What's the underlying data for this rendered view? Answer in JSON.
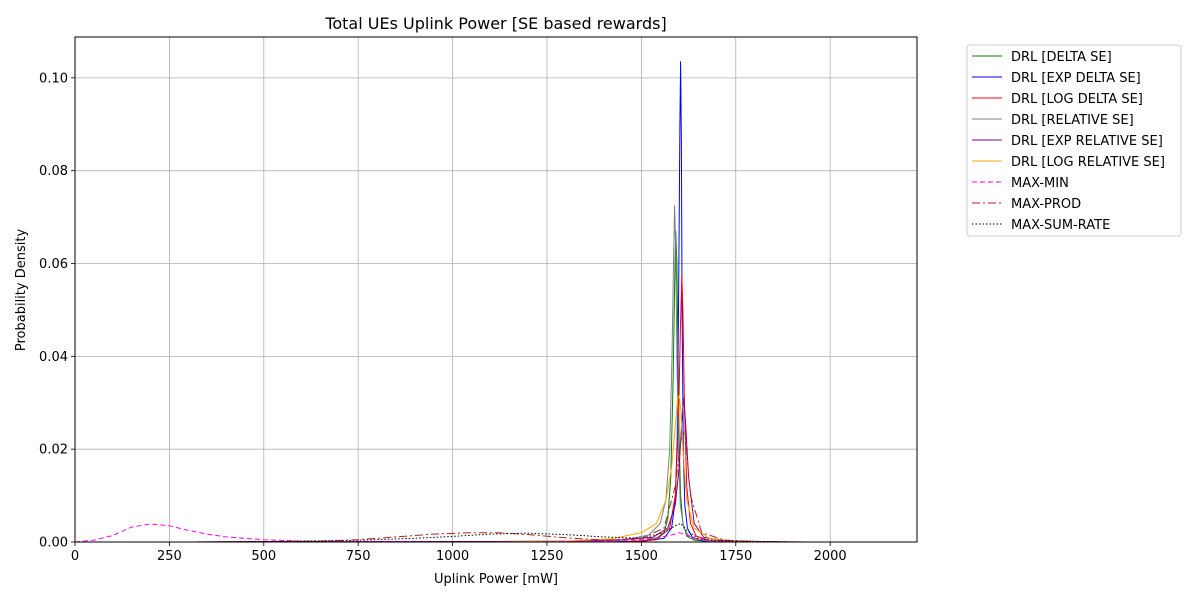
{
  "chart_data": {
    "type": "line",
    "title": "Total UEs Uplink Power [SE based rewards]",
    "xlabel": "Uplink Power [mW]",
    "ylabel": "Probability Density",
    "xlim": [
      0,
      2230
    ],
    "ylim": [
      0,
      0.1088
    ],
    "xticks": [
      0,
      250,
      500,
      750,
      1000,
      1250,
      1500,
      1750,
      2000
    ],
    "xtick_labels": [
      "0",
      "250",
      "500",
      "750",
      "1000",
      "1250",
      "1500",
      "1750",
      "2000"
    ],
    "yticks": [
      0.0,
      0.02,
      0.04,
      0.06,
      0.08,
      0.1
    ],
    "ytick_labels": [
      "0.00",
      "0.02",
      "0.04",
      "0.06",
      "0.08",
      "0.10"
    ],
    "grid": true,
    "legend_position": "outside-right-top",
    "series": [
      {
        "name": "DRL [DELTA SE]",
        "color": "#008000",
        "dash": "solid",
        "x": [
          1400,
          1500,
          1540,
          1560,
          1570,
          1578,
          1584,
          1588,
          1591,
          1594,
          1597,
          1600,
          1604,
          1610,
          1620,
          1640,
          1680,
          1750,
          1900
        ],
        "y": [
          0.0,
          0.0002,
          0.0008,
          0.002,
          0.005,
          0.014,
          0.035,
          0.055,
          0.067,
          0.06,
          0.04,
          0.022,
          0.01,
          0.004,
          0.0013,
          0.0004,
          0.0001,
          0.0,
          0.0
        ]
      },
      {
        "name": "DRL [EXP DELTA SE]",
        "color": "#0000ff",
        "dash": "solid",
        "x": [
          1400,
          1500,
          1560,
          1580,
          1590,
          1595,
          1599,
          1602,
          1604,
          1606,
          1608,
          1611,
          1615,
          1622,
          1635,
          1660,
          1720,
          1800
        ],
        "y": [
          0.0,
          0.0001,
          0.0008,
          0.003,
          0.009,
          0.022,
          0.055,
          0.09,
          0.1035,
          0.085,
          0.05,
          0.02,
          0.008,
          0.003,
          0.001,
          0.0003,
          0.0001,
          0.0
        ]
      },
      {
        "name": "DRL [LOG DELTA SE]",
        "color": "#ff0000",
        "dash": "solid",
        "x": [
          1450,
          1540,
          1575,
          1590,
          1598,
          1603,
          1607,
          1610,
          1614,
          1620,
          1630,
          1645,
          1680,
          1750,
          1850
        ],
        "y": [
          0.0,
          0.0005,
          0.003,
          0.01,
          0.025,
          0.045,
          0.0575,
          0.05,
          0.03,
          0.012,
          0.004,
          0.0013,
          0.0003,
          0.0001,
          0.0
        ]
      },
      {
        "name": "DRL [RELATIVE SE]",
        "color": "#808080",
        "dash": "solid",
        "x": [
          1300,
          1450,
          1520,
          1550,
          1565,
          1575,
          1581,
          1585,
          1588,
          1591,
          1594,
          1598,
          1603,
          1612,
          1630,
          1680,
          1800
        ],
        "y": [
          0.0,
          0.0004,
          0.0015,
          0.004,
          0.009,
          0.02,
          0.04,
          0.06,
          0.0725,
          0.063,
          0.04,
          0.02,
          0.008,
          0.003,
          0.0008,
          0.0002,
          0.0
        ]
      },
      {
        "name": "DRL [EXP RELATIVE SE]",
        "color": "#800080",
        "dash": "solid",
        "x": [
          300,
          500,
          700,
          900,
          1100,
          1300,
          1450,
          1530,
          1570,
          1590,
          1600,
          1607,
          1612,
          1617,
          1625,
          1640,
          1665,
          1720,
          1820,
          1950
        ],
        "y": [
          0.0,
          0.0001,
          0.0001,
          0.0001,
          0.0001,
          0.0002,
          0.0005,
          0.001,
          0.003,
          0.008,
          0.016,
          0.026,
          0.031,
          0.026,
          0.014,
          0.004,
          0.001,
          0.0003,
          0.0001,
          0.0
        ]
      },
      {
        "name": "DRL [LOG RELATIVE SE]",
        "color": "#ffa500",
        "dash": "solid",
        "x": [
          1100,
          1300,
          1420,
          1500,
          1540,
          1565,
          1580,
          1590,
          1596,
          1600,
          1604,
          1610,
          1620,
          1640,
          1680,
          1750,
          1850
        ],
        "y": [
          0.0,
          0.0002,
          0.0007,
          0.002,
          0.004,
          0.009,
          0.016,
          0.025,
          0.031,
          0.0315,
          0.029,
          0.02,
          0.009,
          0.003,
          0.0008,
          0.0002,
          0.0
        ]
      },
      {
        "name": "MAX-MIN",
        "color": "#ff00ff",
        "dash": "5,3",
        "x": [
          0,
          50,
          100,
          150,
          200,
          250,
          300,
          350,
          400,
          500,
          600,
          700,
          800,
          900,
          1000,
          1100,
          1200,
          1300,
          1400,
          1500,
          1550,
          1580,
          1600,
          1620,
          1650,
          1700,
          1800
        ],
        "y": [
          0.0,
          0.0004,
          0.0014,
          0.0032,
          0.0039,
          0.0035,
          0.0025,
          0.0017,
          0.0011,
          0.0005,
          0.0002,
          0.0001,
          0.0001,
          0.0001,
          0.0,
          0.0,
          0.0,
          0.0001,
          0.0002,
          0.0005,
          0.001,
          0.0015,
          0.002,
          0.0015,
          0.0006,
          0.0002,
          0.0
        ]
      },
      {
        "name": "MAX-PROD",
        "color": "#b22222",
        "dash": "8,3,2,3",
        "x": [
          350,
          500,
          650,
          750,
          850,
          950,
          1050,
          1120,
          1200,
          1300,
          1400,
          1500,
          1560,
          1590,
          1605,
          1615,
          1630,
          1660,
          1720,
          1800,
          1900,
          2000
        ],
        "y": [
          0.0,
          0.0001,
          0.0002,
          0.0005,
          0.0011,
          0.0017,
          0.002,
          0.002,
          0.0016,
          0.0009,
          0.0004,
          0.0008,
          0.003,
          0.012,
          0.022,
          0.024,
          0.01,
          0.002,
          0.0004,
          0.0001,
          0.0,
          0.0
        ]
      },
      {
        "name": "MAX-SUM-RATE",
        "color": "#000000",
        "dash": "1.5,2",
        "x": [
          300,
          500,
          700,
          800,
          900,
          1000,
          1100,
          1200,
          1300,
          1400,
          1500,
          1560,
          1590,
          1605,
          1620,
          1650,
          1700,
          1800,
          1900,
          2000,
          2110
        ],
        "y": [
          0.0,
          0.0001,
          0.0003,
          0.0005,
          0.0008,
          0.0012,
          0.0017,
          0.0019,
          0.0016,
          0.0011,
          0.0008,
          0.002,
          0.0035,
          0.004,
          0.0025,
          0.0008,
          0.0003,
          0.0001,
          0.0,
          0.0,
          0.0
        ]
      }
    ]
  }
}
